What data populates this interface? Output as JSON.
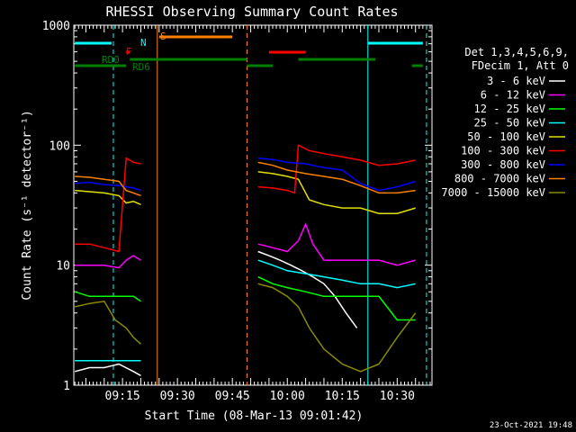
{
  "chart_data": {
    "type": "line",
    "title": "RHESSI Observing Summary Count Rates",
    "xlabel": "Start Time (08-Mar-13 09:01:42)",
    "ylabel": "Count Rate (s⁻¹ detector⁻¹)",
    "y_scale": "log",
    "ylim": [
      1,
      1000
    ],
    "xlim": [
      "09:01:42",
      "10:39:30"
    ],
    "x_ticks": [
      "09:15",
      "09:30",
      "09:45",
      "10:00",
      "10:15",
      "10:30"
    ],
    "y_ticks": [
      "1",
      "10",
      "100",
      "1000"
    ],
    "legend_header": [
      "Det 1,3,4,5,6,9,",
      "FDecim 1, Att 0"
    ],
    "series": [
      {
        "name": "3 - 6 keV",
        "color": "#ffffff",
        "segments": [
          {
            "x": [
              "09:02",
              "09:06",
              "09:10",
              "09:14",
              "09:18",
              "09:20"
            ],
            "y": [
              1.3,
              1.4,
              1.4,
              1.5,
              1.3,
              1.2
            ]
          },
          {
            "x": [
              "09:52",
              "09:55",
              "09:58",
              "10:01",
              "10:04",
              "10:07",
              "10:10",
              "10:13",
              "10:16",
              "10:19"
            ],
            "y": [
              13,
              12,
              11,
              10,
              9,
              8,
              7,
              5.5,
              4,
              3
            ]
          }
        ]
      },
      {
        "name": "6 - 12 keV",
        "color": "#ff00ff",
        "segments": [
          {
            "x": [
              "09:02",
              "09:06",
              "09:10",
              "09:14",
              "09:16",
              "09:18",
              "09:20"
            ],
            "y": [
              10,
              10,
              10,
              9.5,
              11,
              12,
              11
            ]
          },
          {
            "x": [
              "09:52",
              "09:56",
              "10:00",
              "10:03",
              "10:05",
              "10:07",
              "10:10",
              "10:15",
              "10:20",
              "10:25",
              "10:30",
              "10:35"
            ],
            "y": [
              15,
              14,
              13,
              16,
              22,
              15,
              11,
              11,
              11,
              11,
              10,
              11
            ]
          }
        ]
      },
      {
        "name": "12 - 25 keV",
        "color": "#00ff00",
        "segments": [
          {
            "x": [
              "09:02",
              "09:06",
              "09:10",
              "09:14",
              "09:18",
              "09:20"
            ],
            "y": [
              6,
              5.5,
              5.5,
              5.5,
              5.5,
              5
            ]
          },
          {
            "x": [
              "09:52",
              "09:56",
              "10:00",
              "10:05",
              "10:10",
              "10:15",
              "10:20",
              "10:25",
              "10:30",
              "10:35"
            ],
            "y": [
              8,
              7,
              6.5,
              6,
              5.5,
              5.5,
              5.5,
              5.5,
              3.5,
              3.5
            ]
          }
        ]
      },
      {
        "name": "25 - 50 keV",
        "color": "#00ffff",
        "segments": [
          {
            "x": [
              "09:02",
              "09:08",
              "09:14",
              "09:20"
            ],
            "y": [
              1.6,
              1.6,
              1.6,
              1.6
            ]
          },
          {
            "x": [
              "09:52",
              "09:56",
              "10:00",
              "10:05",
              "10:10",
              "10:15",
              "10:20",
              "10:25",
              "10:30",
              "10:35"
            ],
            "y": [
              11,
              10,
              9,
              8.5,
              8,
              7.5,
              7,
              7,
              6.5,
              7
            ]
          }
        ]
      },
      {
        "name": "50 - 100 keV",
        "color": "#e0e000",
        "segments": [
          {
            "x": [
              "09:02",
              "09:06",
              "09:10",
              "09:14",
              "09:16",
              "09:18",
              "09:20"
            ],
            "y": [
              42,
              41,
              40,
              38,
              33,
              34,
              32
            ]
          },
          {
            "x": [
              "09:52",
              "09:56",
              "10:00",
              "10:03",
              "10:06",
              "10:10",
              "10:15",
              "10:20",
              "10:25",
              "10:30",
              "10:35"
            ],
            "y": [
              60,
              58,
              55,
              52,
              35,
              32,
              30,
              30,
              27,
              27,
              30
            ]
          }
        ]
      },
      {
        "name": "100 - 300 keV",
        "color": "#ff0000",
        "segments": [
          {
            "x": [
              "09:02",
              "09:06",
              "09:10",
              "09:14",
              "09:16",
              "09:18",
              "09:20"
            ],
            "y": [
              15,
              15,
              14,
              13,
              78,
              72,
              70
            ]
          },
          {
            "x": [
              "09:52",
              "09:56",
              "10:00",
              "10:02",
              "10:03",
              "10:06",
              "10:10",
              "10:15",
              "10:20",
              "10:25",
              "10:30",
              "10:35"
            ],
            "y": [
              45,
              44,
              42,
              40,
              100,
              90,
              85,
              80,
              75,
              68,
              70,
              75
            ]
          }
        ]
      },
      {
        "name": "300 - 800 keV",
        "color": "#0000ff",
        "segments": [
          {
            "x": [
              "09:02",
              "09:06",
              "09:10",
              "09:14",
              "09:18",
              "09:20"
            ],
            "y": [
              48,
              49,
              47,
              46,
              44,
              42
            ]
          },
          {
            "x": [
              "09:52",
              "09:56",
              "10:00",
              "10:05",
              "10:10",
              "10:15",
              "10:20",
              "10:25",
              "10:30",
              "10:35"
            ],
            "y": [
              78,
              76,
              72,
              70,
              65,
              62,
              48,
              42,
              45,
              50
            ]
          }
        ]
      },
      {
        "name": "800 - 7000 keV",
        "color": "#ff8000",
        "segments": [
          {
            "x": [
              "09:02",
              "09:06",
              "09:10",
              "09:14",
              "09:16",
              "09:18",
              "09:20"
            ],
            "y": [
              55,
              54,
              52,
              50,
              42,
              40,
              38
            ]
          },
          {
            "x": [
              "09:52",
              "09:56",
              "10:00",
              "10:05",
              "10:10",
              "10:15",
              "10:20",
              "10:25",
              "10:30",
              "10:35"
            ],
            "y": [
              72,
              68,
              62,
              58,
              55,
              52,
              46,
              40,
              40,
              42
            ]
          }
        ]
      },
      {
        "name": "7000 - 15000 keV",
        "color": "#8b8b00",
        "segments": [
          {
            "x": [
              "09:02",
              "09:06",
              "09:10",
              "09:13",
              "09:16",
              "09:18",
              "09:20"
            ],
            "y": [
              4.5,
              4.8,
              5,
              3.5,
              3,
              2.5,
              2.2
            ]
          },
          {
            "x": [
              "09:52",
              "09:56",
              "10:00",
              "10:03",
              "10:06",
              "10:10",
              "10:15",
              "10:20",
              "10:25",
              "10:30",
              "10:35"
            ],
            "y": [
              7,
              6.5,
              5.5,
              4.5,
              3,
              2,
              1.5,
              1.3,
              1.5,
              2.5,
              4
            ]
          }
        ]
      }
    ],
    "flags": [
      {
        "label": "S",
        "color": "#ff8000",
        "dash": false,
        "segments": [
          [
            "09:25",
            "09:45"
          ]
        ]
      },
      {
        "label": "N",
        "color": "#00ffff",
        "dash": false,
        "segments": [
          [
            "09:02",
            "09:12"
          ],
          [
            "10:22",
            "10:37"
          ]
        ]
      },
      {
        "label": "F",
        "color": "#ff0000",
        "dash": false,
        "segments": [
          [
            "09:16",
            "09:17"
          ],
          [
            "09:55",
            "10:05"
          ]
        ]
      },
      {
        "label": "RD0",
        "color": "#008000",
        "dash": false,
        "segments": [
          [
            "09:17",
            "09:49"
          ],
          [
            "10:03",
            "10:24"
          ]
        ]
      },
      {
        "label": "RD6",
        "color": "#008000",
        "dash": false,
        "segments": [
          [
            "09:02",
            "09:16"
          ],
          [
            "09:49",
            "09:56"
          ],
          [
            "10:34",
            "10:37"
          ]
        ]
      }
    ],
    "vlines": [
      {
        "x": "09:12.5",
        "color": "#00ffff",
        "dash": true
      },
      {
        "x": "09:24.5",
        "color": "#ff8000",
        "dash": false
      },
      {
        "x": "09:49",
        "color": "#ff8000",
        "dash": true
      },
      {
        "x": "10:22",
        "color": "#00ffff",
        "dash": false
      },
      {
        "x": "10:38",
        "color": "#00ffff",
        "dash": true
      }
    ]
  },
  "footer": {
    "timestamp": "23-Oct-2021 19:48"
  }
}
